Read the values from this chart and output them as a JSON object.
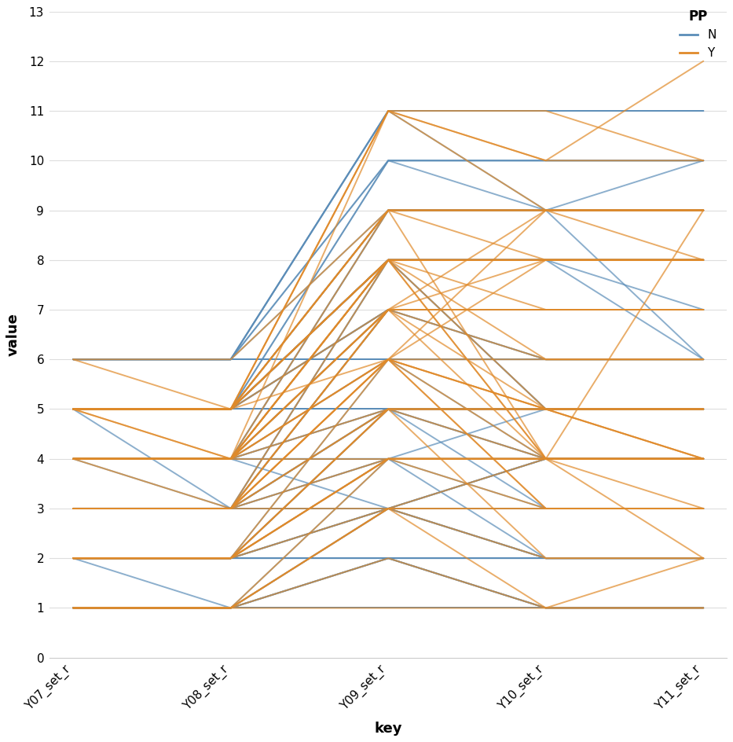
{
  "x_labels": [
    "Y07_set_r",
    "Y08_set_r",
    "Y09_set_r",
    "Y10_set_r",
    "Y11_set_r"
  ],
  "x_positions": [
    0,
    1,
    2,
    3,
    4
  ],
  "ylim": [
    0,
    13
  ],
  "yticks": [
    0,
    1,
    2,
    3,
    4,
    5,
    6,
    7,
    8,
    9,
    10,
    11,
    12,
    13
  ],
  "xlabel": "key",
  "ylabel": "value",
  "legend_title": "PP",
  "color_N": "#5B8DB8",
  "color_Y": "#E08A2A",
  "alpha": 0.7,
  "linewidth": 1.4,
  "background_color": "#ffffff",
  "lines_N": [
    [
      1,
      1,
      1,
      1,
      1
    ],
    [
      1,
      1,
      1,
      1,
      1
    ],
    [
      1,
      1,
      1,
      1,
      1
    ],
    [
      1,
      1,
      1,
      1,
      1
    ],
    [
      1,
      1,
      1,
      1,
      1
    ],
    [
      1,
      1,
      1,
      1,
      1
    ],
    [
      1,
      1,
      1,
      1,
      1
    ],
    [
      1,
      1,
      1,
      1,
      1
    ],
    [
      1,
      1,
      1,
      1,
      1
    ],
    [
      1,
      1,
      1,
      1,
      1
    ],
    [
      2,
      2,
      2,
      2,
      2
    ],
    [
      2,
      2,
      2,
      2,
      2
    ],
    [
      2,
      2,
      2,
      2,
      2
    ],
    [
      2,
      2,
      2,
      2,
      2
    ],
    [
      2,
      2,
      2,
      2,
      2
    ],
    [
      2,
      1,
      2,
      2,
      2
    ],
    [
      2,
      2,
      3,
      2,
      2
    ],
    [
      2,
      2,
      2,
      1,
      1
    ],
    [
      3,
      3,
      3,
      3,
      3
    ],
    [
      3,
      3,
      3,
      3,
      3
    ],
    [
      3,
      3,
      3,
      3,
      3
    ],
    [
      3,
      3,
      3,
      3,
      3
    ],
    [
      3,
      3,
      3,
      3,
      3
    ],
    [
      3,
      3,
      3,
      3,
      3
    ],
    [
      3,
      3,
      4,
      3,
      3
    ],
    [
      3,
      3,
      3,
      4,
      4
    ],
    [
      4,
      4,
      4,
      4,
      4
    ],
    [
      4,
      4,
      4,
      4,
      4
    ],
    [
      4,
      4,
      4,
      4,
      4
    ],
    [
      4,
      4,
      4,
      4,
      4
    ],
    [
      4,
      4,
      4,
      4,
      4
    ],
    [
      4,
      3,
      5,
      4,
      4
    ],
    [
      4,
      4,
      5,
      5,
      5
    ],
    [
      4,
      4,
      4,
      5,
      5
    ],
    [
      4,
      4,
      3,
      4,
      4
    ],
    [
      5,
      5,
      5,
      5,
      5
    ],
    [
      5,
      5,
      5,
      5,
      5
    ],
    [
      5,
      5,
      5,
      5,
      5
    ],
    [
      5,
      5,
      5,
      5,
      5
    ],
    [
      5,
      5,
      5,
      5,
      5
    ],
    [
      5,
      5,
      5,
      5,
      5
    ],
    [
      5,
      5,
      5,
      5,
      5
    ],
    [
      5,
      5,
      5,
      5,
      5
    ],
    [
      5,
      5,
      9,
      9,
      6
    ],
    [
      5,
      5,
      8,
      8,
      6
    ],
    [
      5,
      5,
      7,
      7,
      7
    ],
    [
      5,
      5,
      8,
      8,
      7
    ],
    [
      5,
      5,
      7,
      6,
      6
    ],
    [
      5,
      3,
      8,
      8,
      8
    ],
    [
      5,
      5,
      8,
      5,
      5
    ],
    [
      6,
      6,
      6,
      6,
      6
    ],
    [
      6,
      6,
      6,
      6,
      6
    ],
    [
      6,
      6,
      6,
      6,
      6
    ],
    [
      6,
      6,
      10,
      9,
      9
    ],
    [
      6,
      6,
      10,
      10,
      10
    ],
    [
      6,
      6,
      11,
      11,
      11
    ],
    [
      6,
      6,
      11,
      11,
      11
    ],
    [
      6,
      6,
      11,
      9,
      10
    ],
    [
      4,
      4,
      7,
      6,
      6
    ],
    [
      4,
      4,
      5,
      4,
      4
    ],
    [
      3,
      3,
      3,
      3,
      3
    ],
    [
      3,
      3,
      4,
      4,
      4
    ],
    [
      3,
      3,
      3,
      4,
      4
    ],
    [
      2,
      2,
      2,
      2,
      2
    ],
    [
      2,
      2,
      3,
      2,
      2
    ],
    [
      1,
      1,
      1,
      1,
      1
    ],
    [
      1,
      1,
      2,
      1,
      1
    ],
    [
      1,
      1,
      1,
      1,
      1
    ],
    [
      2,
      2,
      2,
      2,
      2
    ],
    [
      3,
      3,
      3,
      3,
      3
    ],
    [
      4,
      4,
      4,
      4,
      4
    ],
    [
      5,
      5,
      5,
      5,
      5
    ],
    [
      6,
      6,
      6,
      6,
      6
    ],
    [
      5,
      5,
      8,
      8,
      8
    ],
    [
      4,
      4,
      7,
      7,
      7
    ],
    [
      3,
      3,
      5,
      5,
      5
    ],
    [
      2,
      2,
      3,
      3,
      3
    ],
    [
      1,
      1,
      1,
      1,
      1
    ],
    [
      5,
      5,
      5,
      5,
      5
    ],
    [
      4,
      4,
      4,
      4,
      4
    ],
    [
      3,
      3,
      3,
      3,
      3
    ],
    [
      2,
      2,
      2,
      2,
      2
    ],
    [
      1,
      1,
      1,
      1,
      1
    ],
    [
      1,
      1,
      1,
      1,
      1
    ],
    [
      2,
      2,
      2,
      2,
      2
    ],
    [
      3,
      3,
      3,
      3,
      3
    ],
    [
      4,
      4,
      4,
      4,
      4
    ],
    [
      5,
      5,
      5,
      5,
      5
    ],
    [
      5,
      5,
      7,
      7,
      7
    ],
    [
      5,
      5,
      8,
      8,
      8
    ],
    [
      6,
      6,
      9,
      9,
      9
    ],
    [
      5,
      5,
      9,
      9,
      9
    ],
    [
      4,
      4,
      8,
      8,
      8
    ],
    [
      3,
      3,
      7,
      7,
      7
    ],
    [
      2,
      2,
      5,
      5,
      5
    ],
    [
      1,
      1,
      3,
      3,
      3
    ],
    [
      5,
      5,
      10,
      10,
      10
    ],
    [
      4,
      4,
      9,
      9,
      9
    ],
    [
      3,
      3,
      8,
      8,
      8
    ],
    [
      2,
      2,
      6,
      6,
      6
    ],
    [
      1,
      1,
      4,
      4,
      4
    ],
    [
      6,
      6,
      11,
      11,
      11
    ],
    [
      5,
      5,
      10,
      10,
      10
    ],
    [
      4,
      4,
      9,
      9,
      9
    ],
    [
      3,
      3,
      7,
      7,
      7
    ],
    [
      2,
      2,
      5,
      5,
      5
    ],
    [
      1,
      1,
      3,
      2,
      2
    ],
    [
      5,
      5,
      8,
      5,
      5
    ],
    [
      4,
      4,
      6,
      4,
      4
    ],
    [
      3,
      3,
      5,
      3,
      3
    ],
    [
      2,
      2,
      4,
      2,
      2
    ],
    [
      1,
      1,
      2,
      1,
      1
    ]
  ],
  "lines_Y": [
    [
      1,
      1,
      1,
      1,
      2
    ],
    [
      2,
      2,
      4,
      4,
      4
    ],
    [
      3,
      3,
      6,
      9,
      9
    ],
    [
      4,
      3,
      7,
      9,
      9
    ],
    [
      5,
      5,
      11,
      11,
      10
    ],
    [
      5,
      4,
      8,
      5,
      4
    ],
    [
      4,
      4,
      6,
      5,
      4
    ],
    [
      3,
      3,
      3,
      4,
      3
    ],
    [
      2,
      2,
      4,
      4,
      2
    ],
    [
      2,
      2,
      4,
      4,
      4
    ],
    [
      4,
      4,
      7,
      8,
      8
    ],
    [
      3,
      3,
      6,
      3,
      3
    ],
    [
      5,
      5,
      8,
      8,
      8
    ],
    [
      4,
      4,
      7,
      7,
      7
    ],
    [
      5,
      5,
      9,
      4,
      9
    ],
    [
      5,
      5,
      8,
      8,
      8
    ],
    [
      4,
      4,
      5,
      5,
      5
    ],
    [
      3,
      3,
      5,
      5,
      4
    ],
    [
      4,
      4,
      4,
      4,
      4
    ],
    [
      5,
      5,
      8,
      4,
      4
    ],
    [
      6,
      6,
      9,
      9,
      9
    ],
    [
      5,
      5,
      9,
      9,
      9
    ],
    [
      5,
      5,
      11,
      10,
      12
    ],
    [
      4,
      4,
      8,
      8,
      8
    ],
    [
      3,
      3,
      7,
      7,
      7
    ],
    [
      2,
      2,
      5,
      4,
      4
    ],
    [
      1,
      1,
      3,
      3,
      3
    ],
    [
      5,
      5,
      7,
      5,
      5
    ],
    [
      4,
      4,
      6,
      4,
      4
    ],
    [
      3,
      3,
      5,
      5,
      5
    ],
    [
      4,
      4,
      7,
      6,
      6
    ],
    [
      5,
      5,
      8,
      6,
      6
    ],
    [
      5,
      5,
      6,
      8,
      8
    ],
    [
      4,
      4,
      6,
      5,
      5
    ],
    [
      3,
      3,
      4,
      4,
      4
    ],
    [
      2,
      2,
      3,
      2,
      2
    ],
    [
      1,
      1,
      2,
      1,
      1
    ],
    [
      5,
      4,
      11,
      9,
      9
    ],
    [
      4,
      4,
      9,
      8,
      8
    ],
    [
      3,
      3,
      8,
      7,
      7
    ],
    [
      2,
      2,
      6,
      5,
      5
    ],
    [
      1,
      1,
      4,
      3,
      3
    ],
    [
      5,
      5,
      9,
      9,
      8
    ],
    [
      4,
      4,
      8,
      8,
      8
    ],
    [
      3,
      3,
      7,
      7,
      7
    ],
    [
      2,
      2,
      5,
      5,
      5
    ],
    [
      1,
      1,
      3,
      3,
      3
    ],
    [
      4,
      4,
      8,
      8,
      8
    ],
    [
      3,
      3,
      6,
      6,
      6
    ],
    [
      2,
      2,
      4,
      4,
      4
    ],
    [
      6,
      5,
      11,
      10,
      10
    ],
    [
      5,
      5,
      9,
      9,
      9
    ],
    [
      4,
      4,
      8,
      8,
      8
    ],
    [
      5,
      5,
      8,
      4,
      4
    ],
    [
      4,
      4,
      7,
      4,
      4
    ],
    [
      3,
      3,
      6,
      3,
      3
    ],
    [
      2,
      2,
      5,
      2,
      2
    ],
    [
      1,
      1,
      3,
      1,
      1
    ]
  ]
}
